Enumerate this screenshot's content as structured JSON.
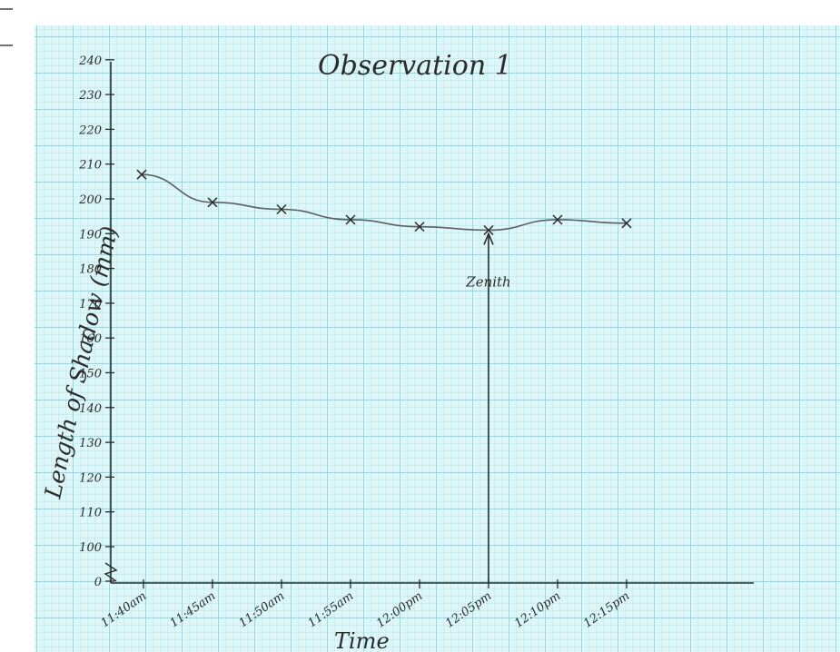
{
  "colors": {
    "paper": "#dff6f8",
    "grid_minor": "#9fe3ea",
    "grid_major": "#62c9d6",
    "ink": "#2b2b2b",
    "pencil": "#5a5f63"
  },
  "chart_data": {
    "type": "line",
    "title": "Observation 1",
    "xlabel": "Time",
    "ylabel": "Length of Shadow (mm)",
    "x": [
      "11:40am",
      "11:45am",
      "11:50am",
      "11:55am",
      "12:00pm",
      "12:05pm",
      "12:10pm",
      "12:15pm"
    ],
    "series": [
      {
        "values": [
          207,
          199,
          197,
          194,
          192,
          191,
          194,
          193
        ]
      }
    ],
    "y_ticks": [
      0,
      100,
      110,
      120,
      130,
      140,
      150,
      160,
      170,
      180,
      190,
      200,
      210,
      220,
      230,
      240
    ],
    "y_tick_labels": [
      "0",
      "100",
      "110",
      "120",
      "130",
      "140",
      "150",
      "160",
      "170",
      "180",
      "190",
      "200",
      "210",
      "220",
      "230",
      "240"
    ],
    "y_axis_break": true,
    "grid": true,
    "marker": "x",
    "annotations": [
      {
        "text": "Zenith",
        "x": "12:05pm",
        "y": 191
      }
    ]
  }
}
